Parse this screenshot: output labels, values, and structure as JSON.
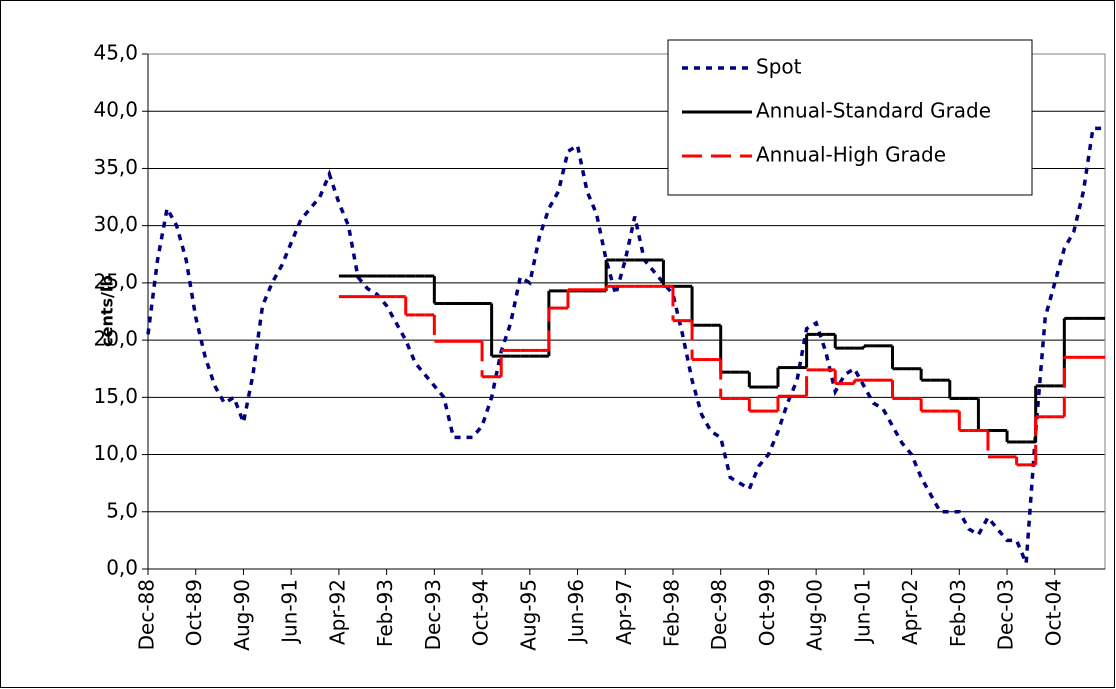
{
  "chart_data": {
    "type": "line",
    "y_label": "cents/lb",
    "categories": [
      "Dec-88",
      null,
      null,
      null,
      null,
      "Oct-89",
      null,
      null,
      null,
      null,
      "Aug-90",
      null,
      null,
      null,
      null,
      "Jun-91",
      null,
      null,
      null,
      null,
      "Apr-92",
      null,
      null,
      null,
      null,
      "Feb-93",
      null,
      null,
      null,
      null,
      "Dec-93",
      null,
      null,
      null,
      null,
      "Oct-94",
      null,
      null,
      null,
      null,
      "Aug-95",
      null,
      null,
      null,
      null,
      "Jun-96",
      null,
      null,
      null,
      null,
      "Apr-97",
      null,
      null,
      null,
      null,
      "Feb-98",
      null,
      null,
      null,
      null,
      "Dec-98",
      null,
      null,
      null,
      null,
      "Oct-99",
      null,
      null,
      null,
      null,
      "Aug-00",
      null,
      null,
      null,
      null,
      "Jun-01",
      null,
      null,
      null,
      null,
      "Apr-02",
      null,
      null,
      null,
      null,
      "Feb-03",
      null,
      null,
      null,
      null,
      "Dec-03",
      null,
      null,
      null,
      null,
      "Oct-04",
      null,
      null,
      null,
      null,
      null
    ],
    "series": [
      {
        "name": "Spot",
        "color": "#000080",
        "line_style": "dotted",
        "values": [
          20.5,
          27,
          31.5,
          30,
          27,
          22,
          18.5,
          16,
          14.5,
          15,
          12.8,
          17,
          23,
          25,
          26.5,
          28.5,
          30.5,
          31.5,
          32.5,
          34.5,
          32,
          30,
          25.5,
          24.5,
          24,
          23,
          21.5,
          20,
          18,
          17,
          16,
          15,
          11.5,
          11.5,
          11.5,
          12.5,
          15,
          19,
          21.5,
          25.5,
          25,
          29,
          31.5,
          33,
          36.5,
          37,
          33,
          31,
          27,
          24,
          27,
          30.8,
          27,
          26,
          25,
          24,
          20.5,
          16.5,
          13.5,
          12,
          11.5,
          8,
          7.5,
          7,
          9,
          10,
          12,
          14.5,
          16.5,
          21,
          21.5,
          19,
          15.5,
          17,
          17.5,
          16,
          14.5,
          14,
          12.5,
          11,
          10,
          8,
          6.5,
          5,
          5,
          5,
          3.5,
          3,
          4.5,
          3.5,
          2.5,
          2.5,
          0.5,
          12,
          22,
          25,
          28,
          29.5,
          33,
          38.5,
          38.5
        ]
      },
      {
        "name": "Annual-Standard Grade",
        "color": "#000000",
        "line_style": "solid",
        "step": "post",
        "values": [
          null,
          null,
          null,
          null,
          null,
          null,
          null,
          null,
          null,
          null,
          null,
          null,
          null,
          null,
          null,
          null,
          null,
          null,
          null,
          null,
          25.6,
          25.6,
          25.6,
          25.6,
          25.6,
          25.6,
          25.6,
          25.6,
          25.6,
          25.6,
          23.2,
          23.2,
          23.2,
          23.2,
          23.2,
          23.2,
          18.6,
          18.6,
          18.6,
          18.6,
          18.6,
          18.6,
          24.3,
          24.3,
          24.3,
          24.3,
          24.3,
          24.3,
          27,
          27,
          27,
          27,
          27,
          27,
          24.7,
          24.7,
          24.7,
          21.3,
          21.3,
          21.3,
          17.2,
          17.2,
          17.2,
          15.9,
          15.9,
          15.9,
          17.6,
          17.6,
          17.6,
          20.5,
          20.5,
          20.5,
          19.3,
          19.3,
          19.3,
          19.5,
          19.5,
          19.5,
          17.5,
          17.5,
          17.5,
          16.5,
          16.5,
          16.5,
          14.9,
          14.9,
          14.9,
          12.1,
          12.1,
          12.1,
          11.1,
          11.1,
          11.1,
          16,
          16,
          16,
          21.9,
          21.9,
          21.9,
          21.9,
          21.9
        ]
      },
      {
        "name": "Annual-High Grade",
        "color": "#ff0000",
        "line_style": "dashed",
        "step": "post",
        "values": [
          null,
          null,
          null,
          null,
          null,
          null,
          null,
          null,
          null,
          null,
          null,
          null,
          null,
          null,
          null,
          null,
          null,
          null,
          null,
          null,
          23.8,
          23.8,
          23.8,
          23.8,
          23.8,
          23.8,
          23.8,
          22.2,
          22.2,
          22.2,
          19.9,
          19.9,
          19.9,
          19.9,
          19.9,
          16.8,
          16.8,
          19.1,
          19.1,
          19.1,
          19.1,
          19.1,
          22.8,
          22.8,
          24.4,
          24.4,
          24.4,
          24.4,
          24.7,
          24.7,
          24.7,
          24.7,
          24.7,
          24.7,
          24.7,
          21.7,
          21.7,
          18.3,
          18.3,
          18.3,
          14.9,
          14.9,
          14.9,
          13.8,
          13.8,
          13.8,
          15.1,
          15.1,
          15.1,
          17.4,
          17.4,
          17.4,
          16.2,
          16.2,
          16.5,
          16.5,
          16.5,
          16.5,
          14.9,
          14.9,
          14.9,
          13.8,
          13.8,
          13.8,
          13.8,
          12.1,
          12.1,
          12.1,
          9.8,
          9.8,
          9.8,
          9.1,
          9.1,
          13.3,
          13.3,
          13.3,
          18.5,
          18.5,
          18.5,
          18.5,
          18.5
        ]
      }
    ],
    "ylim": [
      0,
      45
    ],
    "yticks": [
      {
        "value": 0,
        "label": "0,0"
      },
      {
        "value": 5,
        "label": "5,0"
      },
      {
        "value": 10,
        "label": "10,0"
      },
      {
        "value": 15,
        "label": "15,0"
      },
      {
        "value": 20,
        "label": "20,0"
      },
      {
        "value": 25,
        "label": "25,0"
      },
      {
        "value": 30,
        "label": "30,0"
      },
      {
        "value": 35,
        "label": "35,0"
      },
      {
        "value": 40,
        "label": "40,0"
      },
      {
        "value": 45,
        "label": "45,0"
      }
    ],
    "grid": true,
    "legend": "top-right"
  }
}
